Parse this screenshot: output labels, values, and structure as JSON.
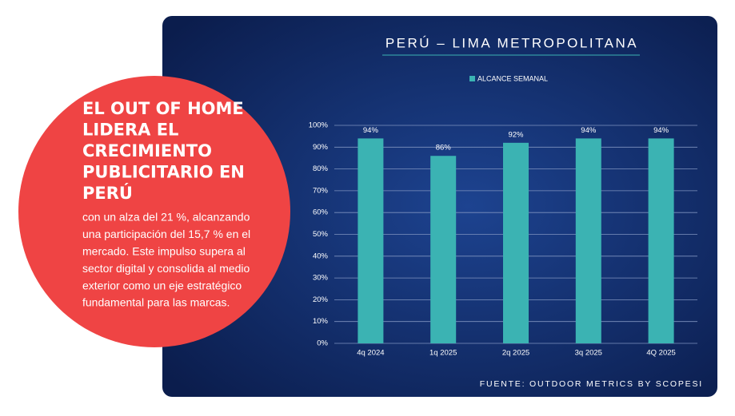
{
  "headline": [
    "EL OUT OF HOME",
    "LIDERA EL",
    "CRECIMIENTO",
    "PUBLICITARIO EN",
    "PERÚ"
  ],
  "body": [
    "con un alza del 21 %, alcanzando",
    "una participación del 15,7 % en el",
    "mercado. Este impulso supera al",
    "sector digital y consolida al medio",
    "exterior como un eje estratégico",
    "fundamental para las marcas."
  ],
  "source": "FUENTE: OUTDOOR METRICS BY SCOPESI",
  "chart_data": {
    "type": "bar",
    "title": "PERÚ – LIMA METROPOLITANA",
    "categories": [
      "4q 2024",
      "1q 2025",
      "2q 2025",
      "3q 2025",
      "4Q 2025"
    ],
    "series": [
      {
        "name": "ALCANCE SEMANAL",
        "color": "#3bb3b3",
        "values": [
          94,
          86,
          92,
          94,
          94
        ],
        "value_labels": [
          "94%",
          "86%",
          "92%",
          "94%",
          "94%"
        ]
      }
    ],
    "ylim": [
      0,
      100
    ],
    "yticks": [
      {
        "value": 0,
        "label": "0%"
      },
      {
        "value": 10,
        "label": "10%"
      },
      {
        "value": 20,
        "label": "20%"
      },
      {
        "value": 30,
        "label": "30%"
      },
      {
        "value": 40,
        "label": "40%"
      },
      {
        "value": 50,
        "label": "50%"
      },
      {
        "value": 60,
        "label": "60%"
      },
      {
        "value": 70,
        "label": "70%"
      },
      {
        "value": 80,
        "label": "80%"
      },
      {
        "value": 90,
        "label": "90%"
      },
      {
        "value": 100,
        "label": "100%"
      }
    ],
    "grid": true,
    "legend": "top"
  }
}
